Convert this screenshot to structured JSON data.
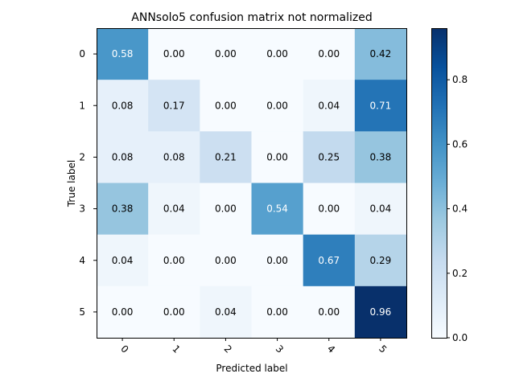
{
  "chart_data": {
    "type": "heatmap",
    "title": "ANNsolo5 confusion matrix not normalized",
    "xlabel": "Predicted label",
    "ylabel": "True label",
    "x_categories": [
      "0",
      "1",
      "2",
      "3",
      "4",
      "5"
    ],
    "y_categories": [
      "0",
      "1",
      "2",
      "3",
      "4",
      "5"
    ],
    "values": [
      [
        0.58,
        0.0,
        0.0,
        0.0,
        0.0,
        0.42
      ],
      [
        0.08,
        0.17,
        0.0,
        0.0,
        0.04,
        0.71
      ],
      [
        0.08,
        0.08,
        0.21,
        0.0,
        0.25,
        0.38
      ],
      [
        0.38,
        0.04,
        0.0,
        0.54,
        0.0,
        0.04
      ],
      [
        0.04,
        0.0,
        0.0,
        0.0,
        0.67,
        0.29
      ],
      [
        0.0,
        0.0,
        0.04,
        0.0,
        0.0,
        0.96
      ]
    ],
    "colormap": "Blues",
    "color_range": [
      0,
      0.96
    ],
    "colorbar_ticks": [
      "0.0",
      "0.2",
      "0.4",
      "0.6",
      "0.8"
    ],
    "x_tick_rotation": "45 degrees",
    "grid": false,
    "colorbar_position": "right"
  }
}
